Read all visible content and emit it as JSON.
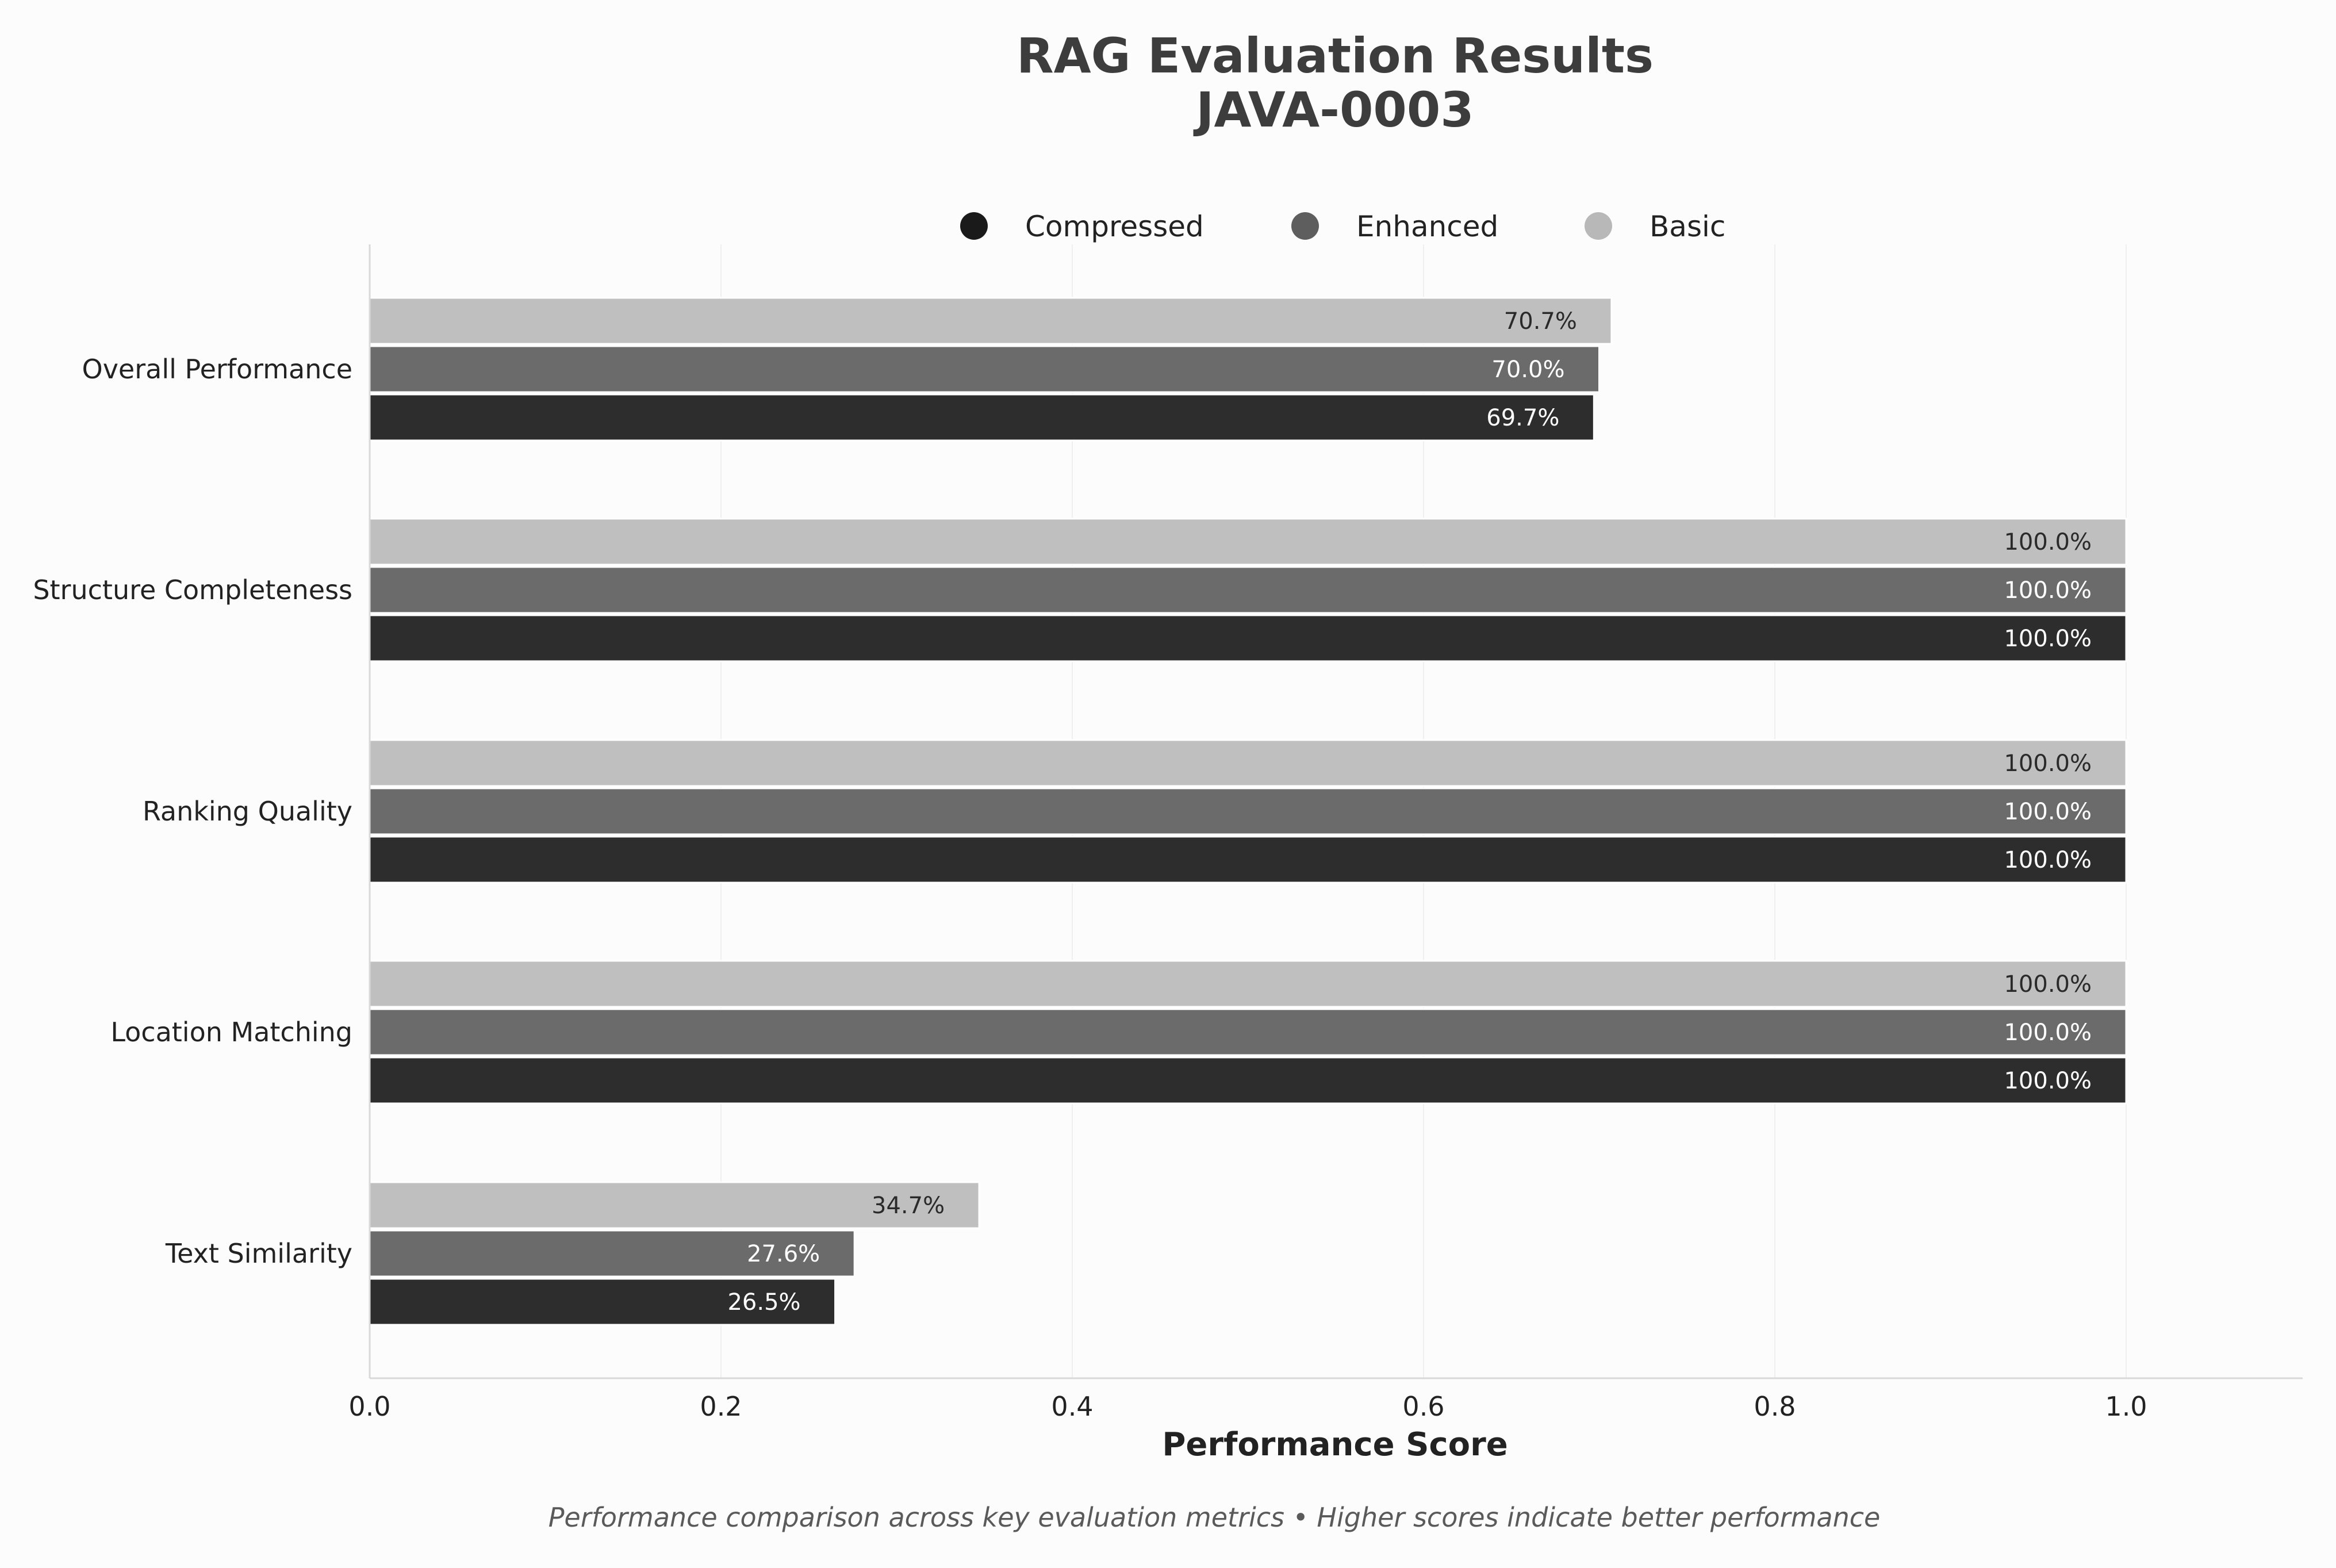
{
  "title_line1": "RAG Evaluation Results",
  "title_line2": "JAVA-0003",
  "caption": "Performance comparison across key evaluation metrics • Higher scores indicate better performance",
  "colors": {
    "background": "#fcfcfc",
    "compressed": "#2d2d2d",
    "enhanced": "#6b6b6b",
    "basic": "#bfbfbf",
    "legend_compressed": "#1a1a1a",
    "legend_enhanced": "#5e5e5e",
    "legend_basic": "#b8b8b8",
    "grid": "#efefef",
    "axis": "#d9d9d9"
  },
  "chart_data": {
    "type": "bar",
    "orientation": "horizontal",
    "xlabel": "Performance Score",
    "ylabel": "",
    "xlim": [
      0,
      1.1
    ],
    "xticks": [
      "0.0",
      "0.2",
      "0.4",
      "0.6",
      "0.8",
      "1.0"
    ],
    "xtick_values": [
      0,
      0.2,
      0.4,
      0.6,
      0.8,
      1.0
    ],
    "grid": "vertical",
    "legend_position": "top-center",
    "categories": [
      "Overall Performance",
      "Structure Completeness",
      "Ranking Quality",
      "Location Matching",
      "Text Similarity"
    ],
    "series": [
      {
        "name": "Compressed",
        "values": [
          0.697,
          1.0,
          1.0,
          1.0,
          0.265
        ],
        "labels": [
          "69.7%",
          "100.0%",
          "100.0%",
          "100.0%",
          "26.5%"
        ]
      },
      {
        "name": "Enhanced",
        "values": [
          0.7,
          1.0,
          1.0,
          1.0,
          0.276
        ],
        "labels": [
          "70.0%",
          "100.0%",
          "100.0%",
          "100.0%",
          "27.6%"
        ]
      },
      {
        "name": "Basic",
        "values": [
          0.707,
          1.0,
          1.0,
          1.0,
          0.347
        ],
        "labels": [
          "70.7%",
          "100.0%",
          "100.0%",
          "100.0%",
          "34.7%"
        ]
      }
    ]
  }
}
